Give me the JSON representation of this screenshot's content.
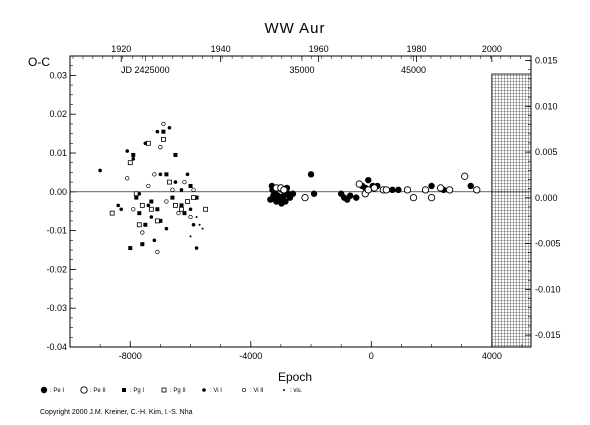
{
  "chart_data": {
    "type": "scatter",
    "title": "WW Aur",
    "ylabel": "O-C",
    "xlabel": "Epoch",
    "xlim": [
      -10000,
      5300
    ],
    "ylim": [
      -0.04,
      0.035
    ],
    "right_ylim": [
      -0.0163,
      0.0155
    ],
    "x_ticks": [
      -8000,
      -4000,
      0,
      4000
    ],
    "x_tick_labels": [
      "-8000",
      "-4000",
      "0",
      "4000"
    ],
    "y_ticks": [
      0.03,
      0.02,
      0.01,
      0.0,
      -0.01,
      -0.02,
      -0.03,
      -0.04
    ],
    "y_tick_labels": [
      "0.03",
      "0.02",
      "0.01",
      "0.00",
      "-0.01",
      "-0.02",
      "-0.03",
      "-0.04"
    ],
    "right_ticks": [
      0.015,
      0.01,
      0.005,
      0.0,
      -0.005,
      -0.01,
      -0.015
    ],
    "right_tick_labels": [
      "0.015",
      "0.010",
      "0.005",
      "0.000",
      "-0.005",
      "-0.010",
      "-0.015"
    ],
    "top_year_ticks": [
      {
        "x": -8300,
        "label": "1920"
      },
      {
        "x": -5000,
        "label": "1940"
      },
      {
        "x": -1750,
        "label": "1960"
      },
      {
        "x": 1500,
        "label": "1980"
      },
      {
        "x": 4000,
        "label": "2000"
      }
    ],
    "jd_labels": [
      {
        "x": -7500,
        "label": "JD 2425000"
      },
      {
        "x": -2300,
        "label": "35000"
      },
      {
        "x": 1400,
        "label": "45000"
      }
    ],
    "hatched_region": [
      4000,
      5300
    ],
    "grid": false,
    "series": [
      {
        "name": "Pe I",
        "marker": "filled-large",
        "points": [
          [
            -3300,
            0.0015
          ],
          [
            -3250,
            -0.001
          ],
          [
            -3200,
            -0.002
          ],
          [
            -3150,
            -0.0025
          ],
          [
            -3100,
            -0.001
          ],
          [
            -3050,
            -0.002
          ],
          [
            -3000,
            -0.0015
          ],
          [
            -2950,
            0.0005
          ],
          [
            -2900,
            -0.001
          ],
          [
            -2850,
            -0.0025
          ],
          [
            -2800,
            0.001
          ],
          [
            -2750,
            -0.0005
          ],
          [
            -2700,
            -0.0015
          ],
          [
            -3350,
            -0.002
          ],
          [
            -3280,
            0.0005
          ],
          [
            -3180,
            -0.0005
          ],
          [
            -3080,
            0.001
          ],
          [
            -2980,
            -0.003
          ],
          [
            -2600,
            -0.0005
          ],
          [
            -2000,
            0.0045
          ],
          [
            -1900,
            -0.0005
          ],
          [
            -1000,
            -0.0005
          ],
          [
            -900,
            -0.0015
          ],
          [
            -800,
            -0.002
          ],
          [
            -700,
            -0.001
          ],
          [
            -500,
            -0.0015
          ],
          [
            -300,
            0.0015
          ],
          [
            -200,
            0.001
          ],
          [
            -100,
            0.003
          ],
          [
            50,
            0.0015
          ],
          [
            200,
            0.0015
          ],
          [
            700,
            0.0005
          ],
          [
            900,
            0.0005
          ],
          [
            2000,
            0.0015
          ],
          [
            2400,
            0.0005
          ],
          [
            3300,
            0.0015
          ]
        ]
      },
      {
        "name": "Pe II",
        "marker": "open-large",
        "points": [
          [
            -3150,
            0.001
          ],
          [
            -3000,
            0.001
          ],
          [
            -2900,
            0.0005
          ],
          [
            -2200,
            -0.0015
          ],
          [
            -400,
            0.002
          ],
          [
            -200,
            -0.0005
          ],
          [
            -100,
            0.0005
          ],
          [
            100,
            0.001
          ],
          [
            400,
            0.0005
          ],
          [
            500,
            0.0005
          ],
          [
            1200,
            0.0005
          ],
          [
            1400,
            -0.0015
          ],
          [
            1800,
            0.0005
          ],
          [
            2000,
            -0.0015
          ],
          [
            2300,
            0.001
          ],
          [
            2600,
            0.0005
          ],
          [
            3100,
            0.004
          ],
          [
            3500,
            0.0005
          ]
        ]
      },
      {
        "name": "Pg I",
        "marker": "filled-square",
        "points": [
          [
            -7900,
            0.0095
          ],
          [
            -7800,
            -0.0015
          ],
          [
            -7700,
            -0.0055
          ],
          [
            -7500,
            -0.0085
          ],
          [
            -7300,
            -0.0025
          ],
          [
            -7100,
            -0.0045
          ],
          [
            -7000,
            -0.0075
          ],
          [
            -6900,
            0.0155
          ],
          [
            -6800,
            0.0045
          ],
          [
            -6600,
            -0.0015
          ],
          [
            -6500,
            0.0095
          ],
          [
            -6300,
            -0.0035
          ],
          [
            -6200,
            -0.0055
          ],
          [
            -6000,
            0.0015
          ],
          [
            -5800,
            -0.0015
          ],
          [
            -7600,
            -0.0135
          ],
          [
            -8000,
            -0.0145
          ]
        ]
      },
      {
        "name": "Pg II",
        "marker": "open-square",
        "points": [
          [
            -8000,
            0.0075
          ],
          [
            -7800,
            -0.0005
          ],
          [
            -7600,
            -0.0035
          ],
          [
            -7400,
            0.0125
          ],
          [
            -7300,
            -0.0045
          ],
          [
            -7100,
            -0.0075
          ],
          [
            -6900,
            0.0135
          ],
          [
            -6700,
            0.0025
          ],
          [
            -6500,
            -0.0035
          ],
          [
            -6300,
            -0.0045
          ],
          [
            -6100,
            -0.0025
          ],
          [
            -5900,
            -0.0015
          ],
          [
            -5500,
            -0.0045
          ],
          [
            -8600,
            -0.0055
          ],
          [
            -7700,
            -0.0085
          ]
        ]
      },
      {
        "name": "Vi I",
        "marker": "filled-small",
        "points": [
          [
            -9000,
            0.0055
          ],
          [
            -8400,
            -0.0035
          ],
          [
            -8100,
            0.0105
          ],
          [
            -7900,
            0.0085
          ],
          [
            -7700,
            -0.0005
          ],
          [
            -7500,
            0.0125
          ],
          [
            -7300,
            -0.0065
          ],
          [
            -7200,
            -0.0125
          ],
          [
            -7100,
            0.0155
          ],
          [
            -7000,
            0.0045
          ],
          [
            -6800,
            -0.0095
          ],
          [
            -6700,
            0.0165
          ],
          [
            -6500,
            0.0025
          ],
          [
            -6300,
            0.0005
          ],
          [
            -6100,
            0.0045
          ],
          [
            -5900,
            -0.0085
          ],
          [
            -5800,
            -0.0145
          ],
          [
            -6000,
            -0.0045
          ],
          [
            -7400,
            -0.0035
          ],
          [
            -8300,
            -0.0045
          ]
        ]
      },
      {
        "name": "Vi II",
        "marker": "open-small",
        "points": [
          [
            -8100,
            0.0035
          ],
          [
            -7900,
            -0.0045
          ],
          [
            -7600,
            -0.0105
          ],
          [
            -7400,
            0.0015
          ],
          [
            -7200,
            0.0045
          ],
          [
            -7000,
            0.0115
          ],
          [
            -6900,
            0.0175
          ],
          [
            -6800,
            -0.0025
          ],
          [
            -6600,
            0.0005
          ],
          [
            -6400,
            -0.0055
          ],
          [
            -6200,
            0.0025
          ],
          [
            -6000,
            -0.0065
          ],
          [
            -5900,
            0.0005
          ],
          [
            -7100,
            -0.0155
          ]
        ]
      },
      {
        "name": "vis.",
        "marker": "dot",
        "points": [
          [
            -6000,
            -0.0115
          ],
          [
            -5800,
            -0.0065
          ],
          [
            -5700,
            -0.0085
          ],
          [
            -5600,
            -0.0095
          ]
        ]
      }
    ]
  },
  "legend": [
    {
      "symbol": "filled-large",
      "label": ": Pe I"
    },
    {
      "symbol": "open-large",
      "label": ": Pe II"
    },
    {
      "symbol": "filled-square",
      "label": ": Pg I"
    },
    {
      "symbol": "open-square",
      "label": ": Pg II"
    },
    {
      "symbol": "filled-small",
      "label": ": Vi I"
    },
    {
      "symbol": "open-small",
      "label": ": Vi II"
    },
    {
      "symbol": "dot",
      "label": ": vis."
    }
  ],
  "copyright": "Copyright 2000 J.M. Kreiner, C.-H. Kim, I.-S. Nha"
}
